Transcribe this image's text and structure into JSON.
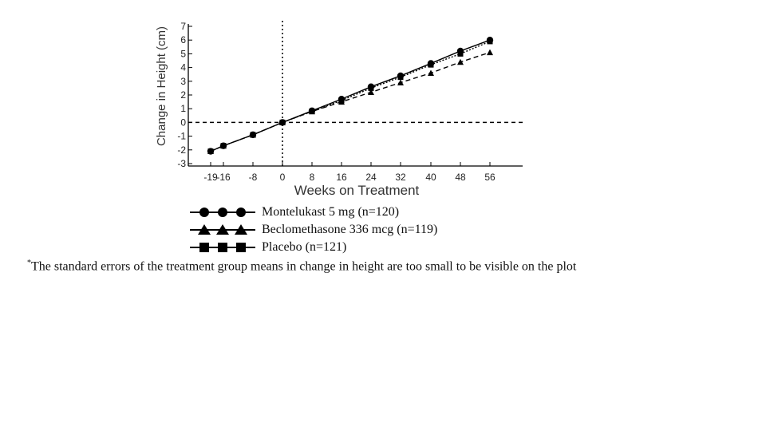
{
  "chart_data": {
    "type": "line",
    "xlabel": "Weeks on Treatment",
    "ylabel": "Change in Height (cm)",
    "xticks": [
      -19,
      -16,
      -8,
      0,
      8,
      16,
      24,
      32,
      40,
      48,
      56
    ],
    "xtick_labels": [
      "-19",
      "-16",
      "-8",
      "0",
      "8",
      "16",
      "24",
      "32",
      "40",
      "48",
      "56"
    ],
    "yticks": [
      -3,
      -2,
      -1,
      0,
      1,
      2,
      3,
      4,
      5,
      6,
      7
    ],
    "ylim": [
      -3,
      7
    ],
    "reference_lines": {
      "x": 0,
      "y": 0,
      "style": "dashed"
    },
    "series": [
      {
        "name": "Montelukast 5 mg (n=120)",
        "marker": "circle",
        "line_style": "solid",
        "x": [
          -19,
          -16,
          -8,
          0,
          8,
          16,
          24,
          32,
          40,
          48,
          56
        ],
        "y": [
          -2.1,
          -1.7,
          -0.9,
          0.0,
          0.85,
          1.7,
          2.6,
          3.4,
          4.3,
          5.2,
          6.0
        ]
      },
      {
        "name": "Beclomethasone 336 mcg (n=119)",
        "marker": "triangle",
        "line_style": "dashed",
        "x": [
          -19,
          -16,
          -8,
          0,
          8,
          16,
          24,
          32,
          40,
          48,
          56
        ],
        "y": [
          -2.1,
          -1.7,
          -0.9,
          0.0,
          0.8,
          1.5,
          2.2,
          2.9,
          3.6,
          4.4,
          5.1
        ]
      },
      {
        "name": "Placebo (n=121)",
        "marker": "square",
        "line_style": "dotted",
        "x": [
          -19,
          -16,
          -8,
          0,
          8,
          16,
          24,
          32,
          40,
          48,
          56
        ],
        "y": [
          -2.1,
          -1.7,
          -0.9,
          0.0,
          0.8,
          1.6,
          2.5,
          3.3,
          4.2,
          5.0,
          5.9
        ]
      }
    ]
  },
  "footnote": {
    "marker": "*",
    "text": "The standard errors of the treatment group means in change in height are too small to be visible on the plot"
  }
}
